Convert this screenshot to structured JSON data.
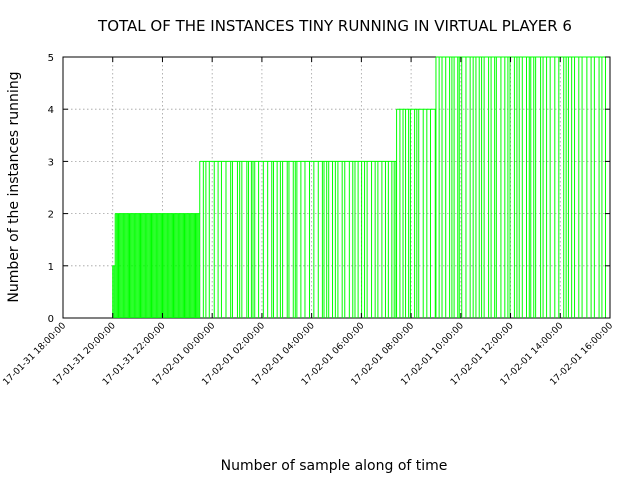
{
  "chart_data": {
    "type": "line",
    "title": "TOTAL OF THE INSTANCES TINY RUNNING IN VIRTUAL PLAYER 6",
    "xlabel": "Number of sample along of time",
    "ylabel": "Number of the instances running",
    "ylim": [
      0,
      5
    ],
    "xlim": [
      "17-01-31 18:00:00",
      "17-02-01 16:00:00"
    ],
    "yticks": [
      0,
      1,
      2,
      3,
      4,
      5
    ],
    "xticks": [
      "17-01-31 18:00:00",
      "17-01-31 20:00:00",
      "17-01-31 22:00:00",
      "17-02-01 00:00:00",
      "17-02-01 02:00:00",
      "17-02-01 04:00:00",
      "17-02-01 06:00:00",
      "17-02-01 08:00:00",
      "17-02-01 10:00:00",
      "17-02-01 12:00:00",
      "17-02-01 14:00:00",
      "17-02-01 16:00:00"
    ],
    "grid": true,
    "series_color": "#00ff00",
    "series": [
      {
        "style": "impulses",
        "segments": [
          {
            "start": "17-01-31 20:00:00",
            "end": "17-01-31 20:06:00",
            "value": 1
          },
          {
            "start": "17-01-31 20:06:00",
            "end": "17-01-31 23:30:00",
            "value": 2
          },
          {
            "start": "17-01-31 23:30:00",
            "end": "17-02-01 07:25:00",
            "value": 3
          },
          {
            "start": "17-02-01 07:25:00",
            "end": "17-02-01 09:00:00",
            "value": 4
          },
          {
            "start": "17-02-01 09:00:00",
            "end": "17-02-01 15:55:00",
            "value": 5
          }
        ]
      }
    ]
  }
}
